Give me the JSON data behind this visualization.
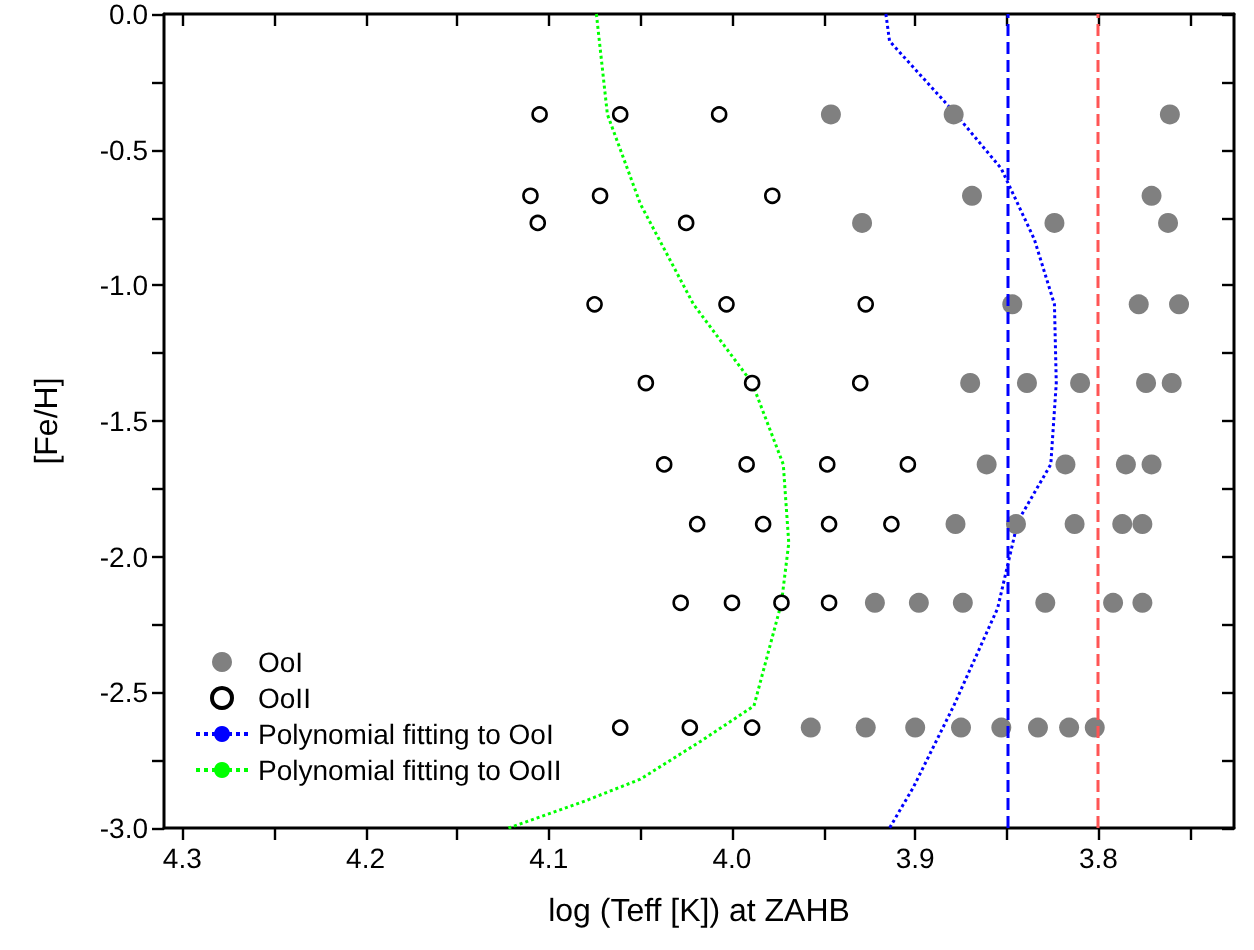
{
  "chart_data": {
    "type": "scatter",
    "xlabel": "log (Teff [K]) at ZAHB",
    "ylabel": "[Fe/H]",
    "xlim": [
      4.31,
      3.726
    ],
    "ylim": [
      -3.0,
      0.0
    ],
    "xticks": [
      {
        "value": 4.3,
        "label": "4.3"
      },
      {
        "value": 4.25,
        "label": null
      },
      {
        "value": 4.2,
        "label": "4.2"
      },
      {
        "value": 4.15,
        "label": null
      },
      {
        "value": 4.1,
        "label": "4.1"
      },
      {
        "value": 4.05,
        "label": null
      },
      {
        "value": 4.0,
        "label": "4.0"
      },
      {
        "value": 3.95,
        "label": null
      },
      {
        "value": 3.9,
        "label": "3.9"
      },
      {
        "value": 3.85,
        "label": null
      },
      {
        "value": 3.8,
        "label": "3.8"
      },
      {
        "value": 3.75,
        "label": null
      }
    ],
    "yticks": [
      {
        "value": -3.0,
        "label": "-3.0"
      },
      {
        "value": -2.75,
        "label": null
      },
      {
        "value": -2.5,
        "label": "-2.5"
      },
      {
        "value": -2.25,
        "label": null
      },
      {
        "value": -2.0,
        "label": "-2.0"
      },
      {
        "value": -1.75,
        "label": null
      },
      {
        "value": -1.5,
        "label": "-1.5"
      },
      {
        "value": -1.25,
        "label": null
      },
      {
        "value": -1.0,
        "label": "-1.0"
      },
      {
        "value": -0.75,
        "label": null
      },
      {
        "value": -0.5,
        "label": "-0.5"
      },
      {
        "value": -0.25,
        "label": null
      },
      {
        "value": 0.0,
        "label": "0.0"
      }
    ],
    "grid": false,
    "legend": "bottom left",
    "series": [
      {
        "name": "OoI",
        "marker": "circle",
        "color": "#808080",
        "x": [
          3.946,
          3.879,
          3.761,
          3.869,
          3.771,
          3.929,
          3.824,
          3.762,
          3.847,
          3.778,
          3.756,
          3.87,
          3.839,
          3.81,
          3.774,
          3.76,
          3.861,
          3.818,
          3.785,
          3.771,
          3.878,
          3.845,
          3.813,
          3.787,
          3.776,
          3.922,
          3.898,
          3.874,
          3.829,
          3.792,
          3.776,
          3.957,
          3.927,
          3.9,
          3.875,
          3.853,
          3.833,
          3.816,
          3.802
        ],
        "values": [
          -0.37,
          -0.37,
          -0.37,
          -0.67,
          -0.67,
          -0.77,
          -0.77,
          -0.77,
          -1.07,
          -1.07,
          -1.07,
          -1.36,
          -1.36,
          -1.36,
          -1.36,
          -1.36,
          -1.66,
          -1.66,
          -1.66,
          -1.66,
          -1.88,
          -1.88,
          -1.88,
          -1.88,
          -1.88,
          -2.17,
          -2.17,
          -2.17,
          -2.17,
          -2.17,
          -2.17,
          -2.63,
          -2.63,
          -2.63,
          -2.63,
          -2.63,
          -2.63,
          -2.63,
          -2.63
        ]
      },
      {
        "name": "OoII",
        "marker": "circle",
        "color": "#000000",
        "x": [
          4.105,
          4.061,
          4.007,
          4.11,
          4.072,
          3.978,
          4.106,
          4.025,
          4.075,
          4.003,
          3.927,
          4.047,
          3.989,
          3.93,
          4.037,
          3.992,
          3.948,
          3.904,
          4.019,
          3.983,
          3.947,
          3.913,
          4.028,
          4.0,
          3.973,
          3.947,
          4.061,
          4.023,
          3.989
        ],
        "values": [
          -0.37,
          -0.37,
          -0.37,
          -0.67,
          -0.67,
          -0.67,
          -0.77,
          -0.77,
          -1.07,
          -1.07,
          -1.07,
          -1.36,
          -1.36,
          -1.36,
          -1.66,
          -1.66,
          -1.66,
          -1.66,
          -1.88,
          -1.88,
          -1.88,
          -1.88,
          -2.17,
          -2.17,
          -2.17,
          -2.17,
          -2.63,
          -2.63,
          -2.63
        ]
      },
      {
        "name": "Polynomial fitting to OoI",
        "type": "line",
        "marker": "none",
        "line_style": "dotted",
        "color": "#0000ff",
        "x": [
          3.916,
          3.914,
          3.879,
          3.853,
          3.835,
          3.824,
          3.823,
          3.826,
          3.844,
          3.855,
          3.879,
          3.901,
          3.914
        ],
        "values": [
          0.0,
          -0.1,
          -0.36,
          -0.57,
          -0.83,
          -1.07,
          -1.36,
          -1.66,
          -1.87,
          -2.19,
          -2.55,
          -2.85,
          -3.0
        ]
      },
      {
        "name": "Polynomial fitting to OoII",
        "type": "line",
        "marker": "none",
        "line_style": "dotted",
        "color": "#00ff00",
        "x": [
          4.074,
          4.068,
          4.05,
          4.021,
          3.989,
          3.972,
          3.969,
          3.973,
          3.988,
          4.017,
          4.05,
          4.08,
          4.122
        ],
        "values": [
          0.0,
          -0.37,
          -0.7,
          -1.07,
          -1.36,
          -1.66,
          -1.95,
          -2.17,
          -2.55,
          -2.68,
          -2.82,
          -2.9,
          -3.0
        ]
      }
    ],
    "ref_lines": [
      {
        "axis": "x",
        "value": 3.85,
        "color": "#0000ff",
        "line_style": "dashed"
      },
      {
        "axis": "x",
        "value": 3.8,
        "color": "#ff5555",
        "line_style": "dashed"
      }
    ]
  }
}
